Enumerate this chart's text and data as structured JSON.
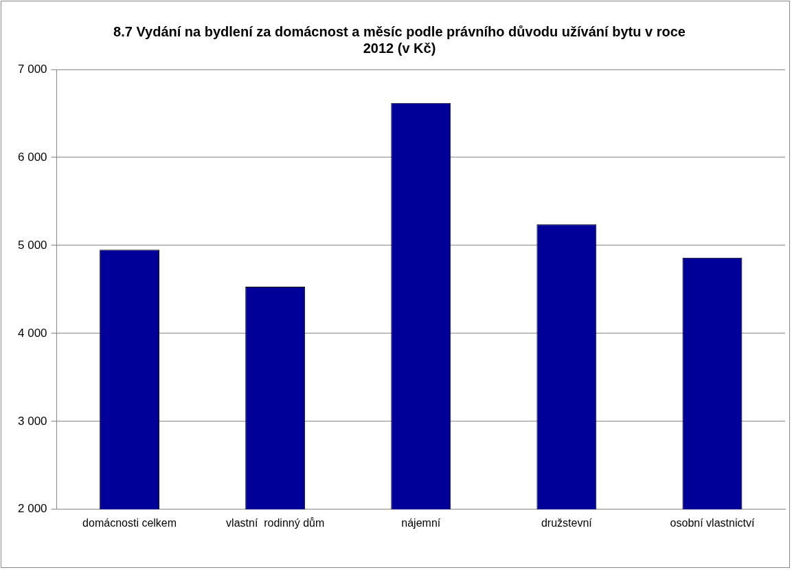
{
  "chart_data": {
    "type": "bar",
    "title": "8.7 Vydání na bydlení za domácnost a měsíc podle právního důvodu užívání bytu v roce 2012 (v Kč)",
    "categories": [
      "domácnosti celkem",
      "vlastní  rodinný dům",
      "nájemní",
      "družstevní",
      "osobní vlastnictví"
    ],
    "values": [
      4950,
      4530,
      6620,
      5240,
      4860
    ],
    "color": "#000099",
    "ylim": [
      2000,
      7000
    ],
    "yticks": [
      {
        "value": 2000,
        "label": "2 000"
      },
      {
        "value": 3000,
        "label": "3 000"
      },
      {
        "value": 4000,
        "label": "4 000"
      },
      {
        "value": 5000,
        "label": "5 000"
      },
      {
        "value": 6000,
        "label": "6 000"
      },
      {
        "value": 7000,
        "label": "7 000"
      }
    ],
    "grid": "y",
    "legend": false
  }
}
